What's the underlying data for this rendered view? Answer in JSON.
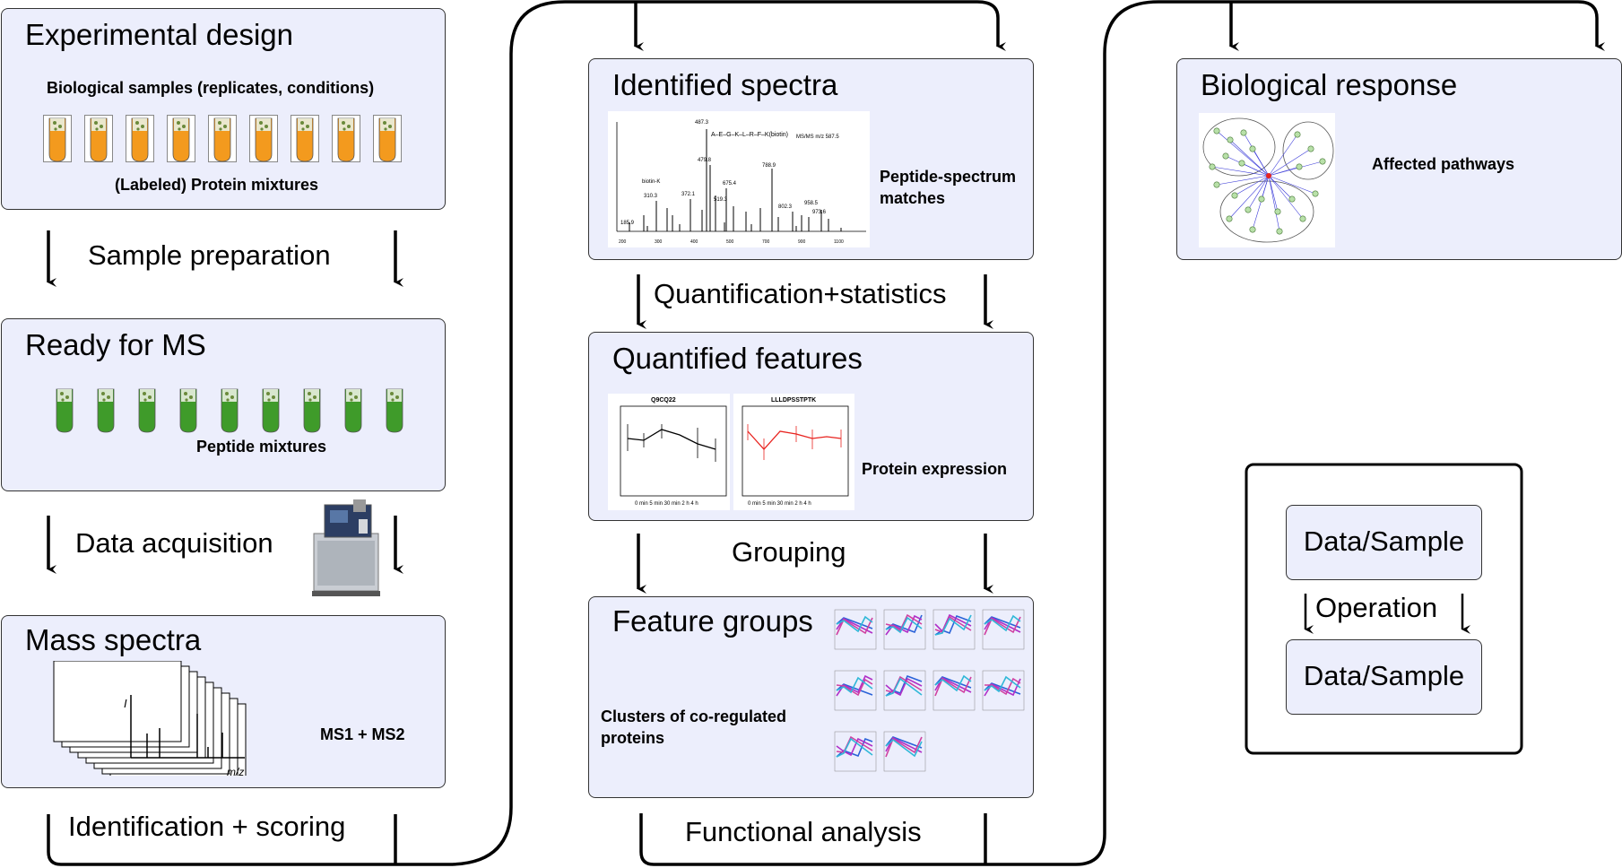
{
  "boxes": {
    "experimental_design": {
      "title": "Experimental design",
      "line1": "Biological samples (replicates, conditions)",
      "line2": "(Labeled) Protein mixtures"
    },
    "ready_for_ms": {
      "title": "Ready for MS",
      "line1": "Peptide mixtures"
    },
    "mass_spectra": {
      "title": "Mass spectra",
      "line1": "MS1 + MS2",
      "axis_i": "I",
      "axis_mz": "m/z"
    },
    "identified_spectra": {
      "title": "Identified spectra",
      "line1": "Peptide-spectrum",
      "line2": "matches"
    },
    "quantified_features": {
      "title": "Quantified features",
      "line1": "Protein expression",
      "plot1_title": "Q9CQ22",
      "plot2_title": "LLLDPSSTPTK"
    },
    "feature_groups": {
      "title": "Feature groups",
      "line1": "Clusters of co-regulated",
      "line2": "proteins"
    },
    "biological_response": {
      "title": "Biological response",
      "line1": "Affected pathways"
    }
  },
  "steps": {
    "sample_preparation": "Sample preparation",
    "data_acquisition": "Data acquisition",
    "identification": "Identification + scoring",
    "quantification": "Quantification+statistics",
    "grouping": "Grouping",
    "functional_analysis": "Functional analysis"
  },
  "legend": {
    "data_top": "Data/Sample",
    "operation": "Operation",
    "data_bottom": "Data/Sample"
  },
  "colors": {
    "box_fill": "#eceefc",
    "tube_orange": "#f39a1e",
    "tube_green": "#3f9b2a",
    "red_line": "#e8231f"
  }
}
